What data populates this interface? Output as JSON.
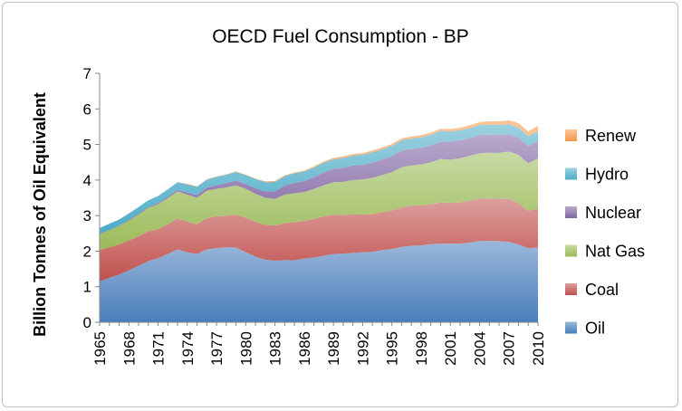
{
  "chart_data": {
    "type": "area",
    "stacked": true,
    "title": "OECD Fuel Consumption - BP",
    "xlabel": "",
    "ylabel": "Billion Tonnes of Oil  Equivalent",
    "ylim": [
      0,
      7
    ],
    "yticks": [
      0,
      1,
      2,
      3,
      4,
      5,
      6,
      7
    ],
    "x": [
      1965,
      1966,
      1967,
      1968,
      1969,
      1970,
      1971,
      1972,
      1973,
      1974,
      1975,
      1976,
      1977,
      1978,
      1979,
      1980,
      1981,
      1982,
      1983,
      1984,
      1985,
      1986,
      1987,
      1988,
      1989,
      1990,
      1991,
      1992,
      1993,
      1994,
      1995,
      1996,
      1997,
      1998,
      1999,
      2000,
      2001,
      2002,
      2003,
      2004,
      2005,
      2006,
      2007,
      2008,
      2009,
      2010
    ],
    "xticks": [
      1965,
      1968,
      1971,
      1974,
      1977,
      1980,
      1983,
      1986,
      1989,
      1992,
      1995,
      1998,
      2001,
      2004,
      2007,
      2010
    ],
    "legend_position": "right",
    "series": [
      {
        "name": "Oil",
        "color": "#4a7ebb",
        "values": [
          1.15,
          1.25,
          1.34,
          1.46,
          1.59,
          1.72,
          1.8,
          1.92,
          2.05,
          1.97,
          1.92,
          2.05,
          2.08,
          2.11,
          2.1,
          1.97,
          1.85,
          1.76,
          1.73,
          1.75,
          1.74,
          1.79,
          1.82,
          1.87,
          1.92,
          1.93,
          1.95,
          1.97,
          1.98,
          2.03,
          2.06,
          2.12,
          2.15,
          2.16,
          2.2,
          2.21,
          2.21,
          2.21,
          2.24,
          2.28,
          2.29,
          2.28,
          2.26,
          2.19,
          2.08,
          2.1
        ]
      },
      {
        "name": "Coal",
        "color": "#c0504d",
        "values": [
          0.88,
          0.86,
          0.85,
          0.84,
          0.83,
          0.84,
          0.82,
          0.84,
          0.87,
          0.86,
          0.84,
          0.88,
          0.9,
          0.89,
          0.93,
          0.97,
          0.98,
          0.98,
          0.99,
          1.04,
          1.07,
          1.06,
          1.08,
          1.11,
          1.11,
          1.09,
          1.08,
          1.06,
          1.06,
          1.07,
          1.08,
          1.11,
          1.13,
          1.13,
          1.12,
          1.16,
          1.15,
          1.16,
          1.18,
          1.19,
          1.19,
          1.19,
          1.21,
          1.16,
          1.05,
          1.1
        ]
      },
      {
        "name": "Nat Gas",
        "color": "#9bbb59",
        "values": [
          0.45,
          0.48,
          0.52,
          0.56,
          0.61,
          0.66,
          0.7,
          0.73,
          0.76,
          0.76,
          0.74,
          0.77,
          0.77,
          0.79,
          0.82,
          0.81,
          0.78,
          0.76,
          0.75,
          0.8,
          0.82,
          0.81,
          0.85,
          0.87,
          0.91,
          0.93,
          0.97,
          0.99,
          1.02,
          1.04,
          1.08,
          1.13,
          1.13,
          1.15,
          1.18,
          1.22,
          1.21,
          1.24,
          1.26,
          1.28,
          1.29,
          1.29,
          1.33,
          1.36,
          1.34,
          1.41
        ]
      },
      {
        "name": "Nuclear",
        "color": "#8064a2",
        "values": [
          0.01,
          0.01,
          0.01,
          0.02,
          0.02,
          0.02,
          0.03,
          0.04,
          0.05,
          0.06,
          0.08,
          0.09,
          0.11,
          0.12,
          0.13,
          0.14,
          0.16,
          0.18,
          0.21,
          0.25,
          0.29,
          0.31,
          0.33,
          0.36,
          0.37,
          0.39,
          0.41,
          0.41,
          0.43,
          0.44,
          0.45,
          0.47,
          0.46,
          0.47,
          0.48,
          0.49,
          0.51,
          0.51,
          0.5,
          0.52,
          0.51,
          0.51,
          0.49,
          0.49,
          0.48,
          0.49
        ]
      },
      {
        "name": "Hydro",
        "color": "#4bacc6",
        "values": [
          0.16,
          0.17,
          0.17,
          0.18,
          0.19,
          0.19,
          0.2,
          0.21,
          0.21,
          0.23,
          0.23,
          0.22,
          0.23,
          0.24,
          0.25,
          0.25,
          0.26,
          0.26,
          0.27,
          0.27,
          0.27,
          0.27,
          0.27,
          0.28,
          0.27,
          0.28,
          0.28,
          0.28,
          0.29,
          0.28,
          0.29,
          0.29,
          0.3,
          0.29,
          0.29,
          0.3,
          0.28,
          0.28,
          0.28,
          0.28,
          0.28,
          0.28,
          0.28,
          0.28,
          0.28,
          0.28
        ]
      },
      {
        "name": "Renew",
        "color": "#f79646",
        "values": [
          0.0,
          0.0,
          0.0,
          0.0,
          0.0,
          0.0,
          0.0,
          0.0,
          0.0,
          0.01,
          0.01,
          0.01,
          0.01,
          0.01,
          0.01,
          0.01,
          0.01,
          0.02,
          0.02,
          0.02,
          0.02,
          0.02,
          0.03,
          0.03,
          0.04,
          0.04,
          0.04,
          0.04,
          0.05,
          0.05,
          0.05,
          0.05,
          0.05,
          0.06,
          0.06,
          0.06,
          0.07,
          0.07,
          0.08,
          0.08,
          0.09,
          0.1,
          0.11,
          0.12,
          0.13,
          0.15
        ]
      }
    ]
  }
}
